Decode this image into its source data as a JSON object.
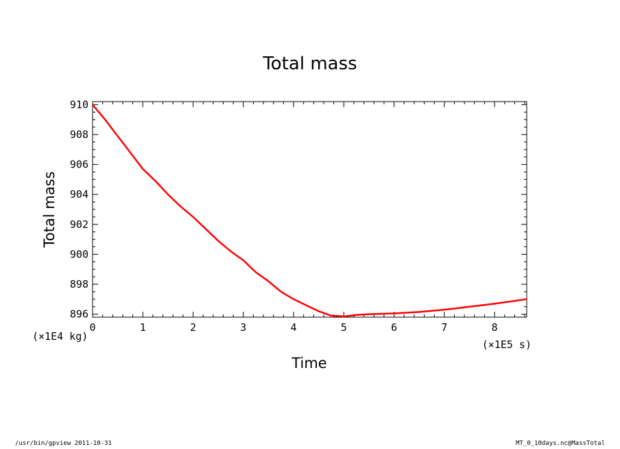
{
  "chart_data": {
    "type": "line",
    "title": "Total mass",
    "xlabel": "Time",
    "ylabel": "Total mass",
    "x_unit": "(×1E5 s)",
    "y_unit": "(×1E4 kg)",
    "xlim": [
      0,
      8.64
    ],
    "ylim": [
      895.8,
      910.2
    ],
    "x_ticks": [
      0,
      1,
      2,
      3,
      4,
      5,
      6,
      7,
      8
    ],
    "y_ticks": [
      896,
      898,
      900,
      902,
      904,
      906,
      908,
      910
    ],
    "grid": false,
    "line_color": "#ff0000",
    "series": [
      {
        "x": [
          0,
          0.25,
          0.5,
          0.75,
          1,
          1.25,
          1.5,
          1.75,
          2,
          2.25,
          2.5,
          2.75,
          3,
          3.25,
          3.5,
          3.75,
          4,
          4.25,
          4.5,
          4.75,
          5,
          5.25,
          5.5,
          6,
          6.5,
          7,
          7.5,
          8,
          8.64
        ],
        "y": [
          910,
          909.0,
          907.9,
          906.8,
          905.7,
          904.9,
          904.0,
          903.2,
          902.5,
          901.7,
          900.9,
          900.2,
          899.6,
          898.8,
          898.2,
          897.5,
          897.0,
          896.6,
          896.2,
          895.9,
          895.85,
          895.95,
          896.0,
          896.05,
          896.15,
          896.3,
          896.5,
          896.7,
          897.0
        ]
      }
    ]
  },
  "footer": {
    "left": "/usr/bin/gpview   2011-10-31",
    "right": "MT_0_10days.nc@MassTotal"
  }
}
